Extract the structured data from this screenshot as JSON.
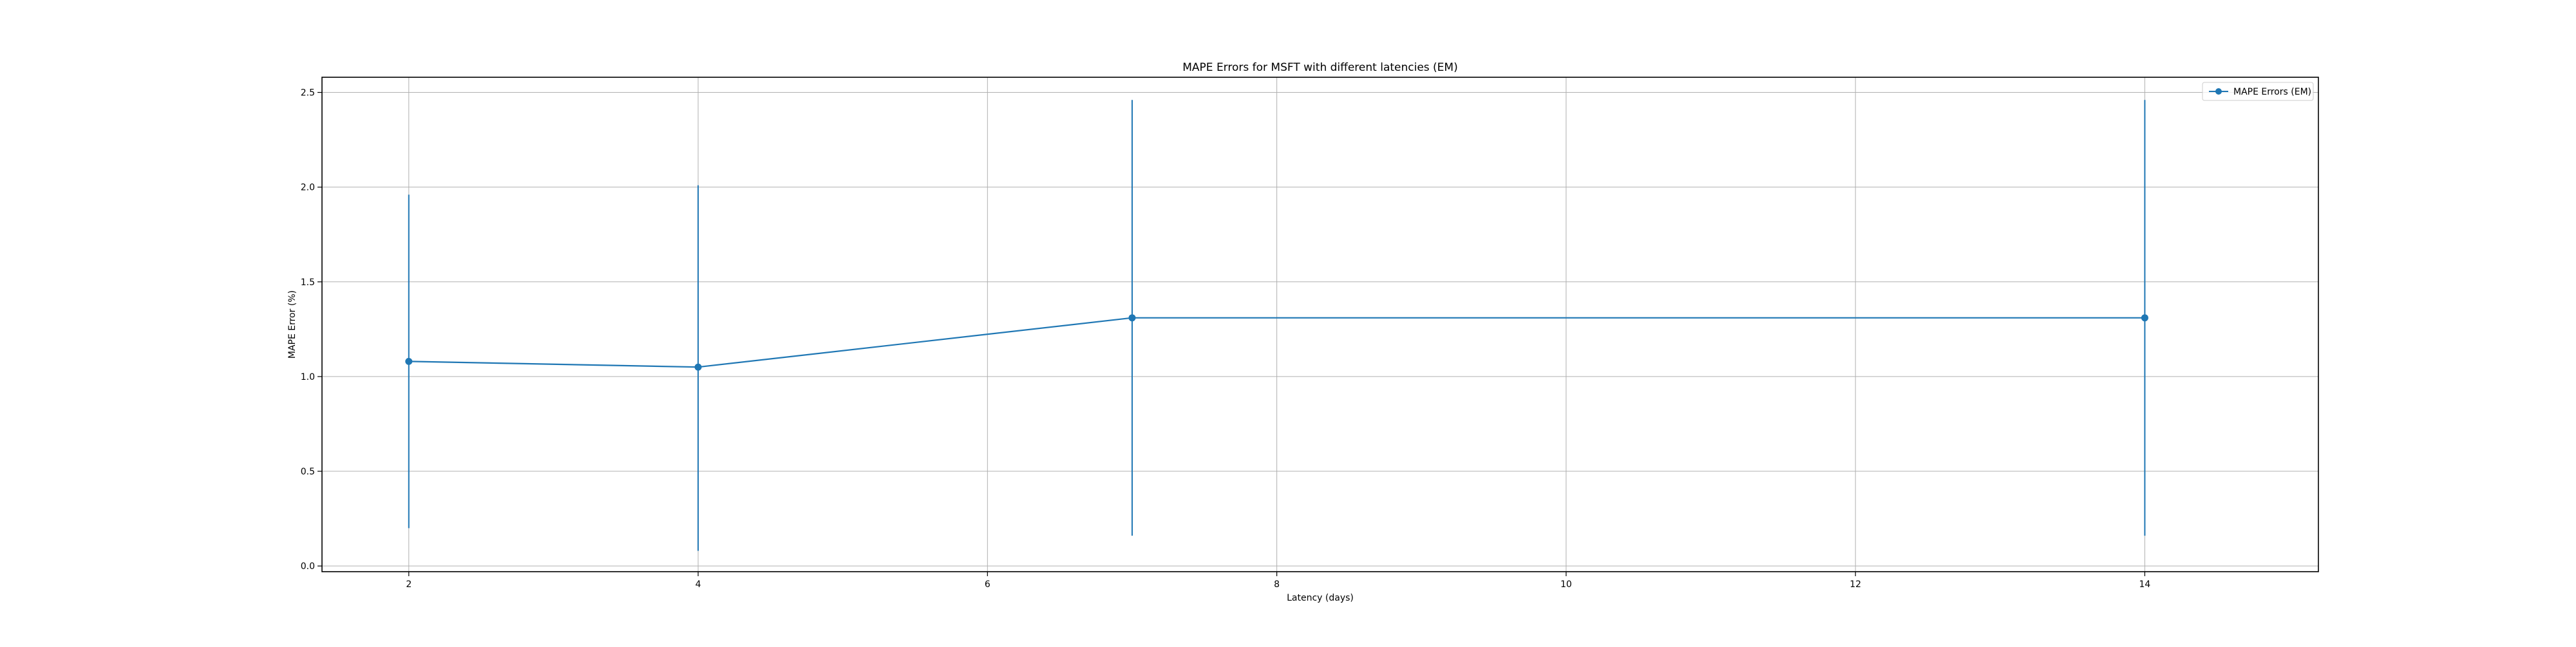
{
  "chart_data": {
    "type": "line",
    "title": "MAPE Errors for MSFT with different latencies (EM)",
    "xlabel": "Latency (days)",
    "ylabel": "MAPE Error (%)",
    "xlim": [
      1.4,
      15.2
    ],
    "ylim": [
      -0.03,
      2.58
    ],
    "x_ticks": [
      2,
      4,
      6,
      8,
      10,
      12,
      14
    ],
    "y_ticks": [
      0.0,
      0.5,
      1.0,
      1.5,
      2.0,
      2.5
    ],
    "y_tick_labels": [
      "0.0",
      "0.5",
      "1.0",
      "1.5",
      "2.0",
      "2.5"
    ],
    "grid": true,
    "legend_position": "top-right",
    "series": [
      {
        "name": "MAPE Errors (EM)",
        "color": "#1f77b4",
        "marker": "circle",
        "x": [
          2,
          4,
          7,
          14
        ],
        "y": [
          1.08,
          1.05,
          1.31,
          1.31
        ],
        "error_low": [
          0.2,
          0.08,
          0.16,
          0.16
        ],
        "error_high": [
          1.96,
          2.01,
          2.46,
          2.46
        ]
      }
    ]
  }
}
